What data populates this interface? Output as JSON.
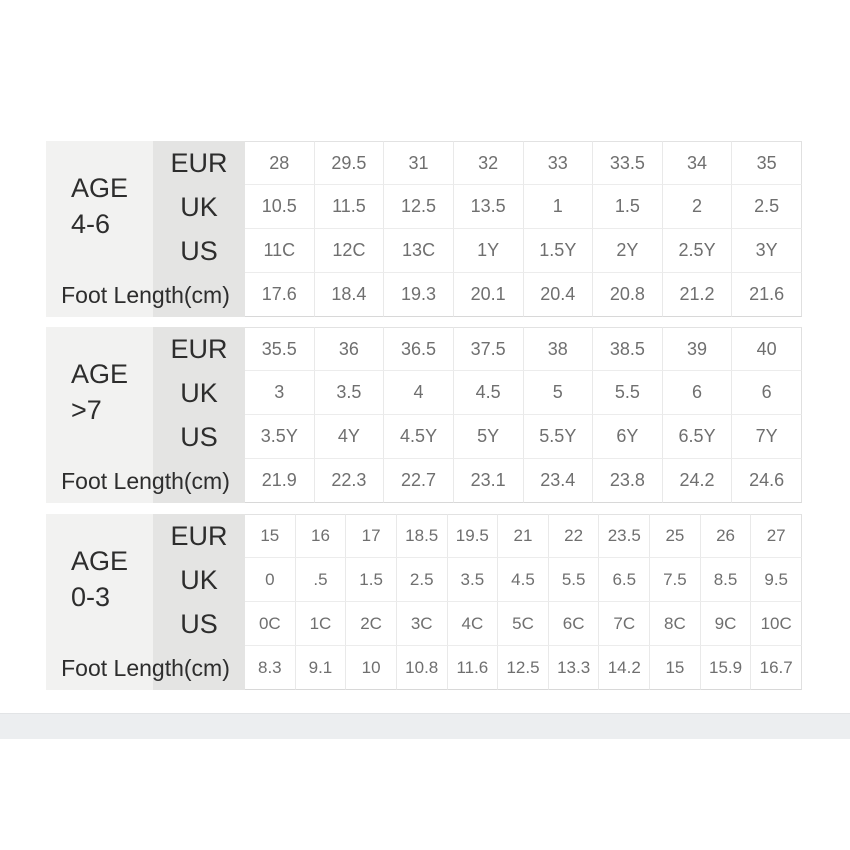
{
  "colors": {
    "page_background": "#ffffff",
    "age_block_background": "#f2f2f1",
    "row_label_background": "#e4e4e3",
    "label_text": "#2d2d2d",
    "value_text": "#6f6f6f",
    "grid_border": "#e9e9e9",
    "footer_band": "#eceef0"
  },
  "tables": [
    {
      "age_line1": "AGE",
      "age_line2": "4-6",
      "labels": [
        "EUR",
        "UK",
        "US",
        "Foot Length(cm)"
      ],
      "values": {
        "eur": [
          "28",
          "29.5",
          "31",
          "32",
          "33",
          "33.5",
          "34",
          "35"
        ],
        "uk": [
          "10.5",
          "11.5",
          "12.5",
          "13.5",
          "1",
          "1.5",
          "2",
          "2.5"
        ],
        "us": [
          "11C",
          "12C",
          "13C",
          "1Y",
          "1.5Y",
          "2Y",
          "2.5Y",
          "3Y"
        ],
        "foot": [
          "17.6",
          "18.4",
          "19.3",
          "20.1",
          "20.4",
          "20.8",
          "21.2",
          "21.6"
        ]
      }
    },
    {
      "age_line1": "AGE",
      "age_line2": ">7",
      "labels": [
        "EUR",
        "UK",
        "US",
        "Foot Length(cm)"
      ],
      "values": {
        "eur": [
          "35.5",
          "36",
          "36.5",
          "37.5",
          "38",
          "38.5",
          "39",
          "40"
        ],
        "uk": [
          "3",
          "3.5",
          "4",
          "4.5",
          "5",
          "5.5",
          "6",
          "6"
        ],
        "us": [
          "3.5Y",
          "4Y",
          "4.5Y",
          "5Y",
          "5.5Y",
          "6Y",
          "6.5Y",
          "7Y"
        ],
        "foot": [
          "21.9",
          "22.3",
          "22.7",
          "23.1",
          "23.4",
          "23.8",
          "24.2",
          "24.6"
        ]
      }
    },
    {
      "age_line1": "AGE",
      "age_line2": "0-3",
      "labels": [
        "EUR",
        "UK",
        "US",
        "Foot Length(cm)"
      ],
      "values": {
        "eur": [
          "15",
          "16",
          "17",
          "18.5",
          "19.5",
          "21",
          "22",
          "23.5",
          "25",
          "26",
          "27"
        ],
        "uk": [
          "0",
          ".5",
          "1.5",
          "2.5",
          "3.5",
          "4.5",
          "5.5",
          "6.5",
          "7.5",
          "8.5",
          "9.5"
        ],
        "us": [
          "0C",
          "1C",
          "2C",
          "3C",
          "4C",
          "5C",
          "6C",
          "7C",
          "8C",
          "9C",
          "10C"
        ],
        "foot": [
          "8.3",
          "9.1",
          "10",
          "10.8",
          "11.6",
          "12.5",
          "13.3",
          "14.2",
          "15",
          "15.9",
          "16.7"
        ]
      }
    }
  ]
}
